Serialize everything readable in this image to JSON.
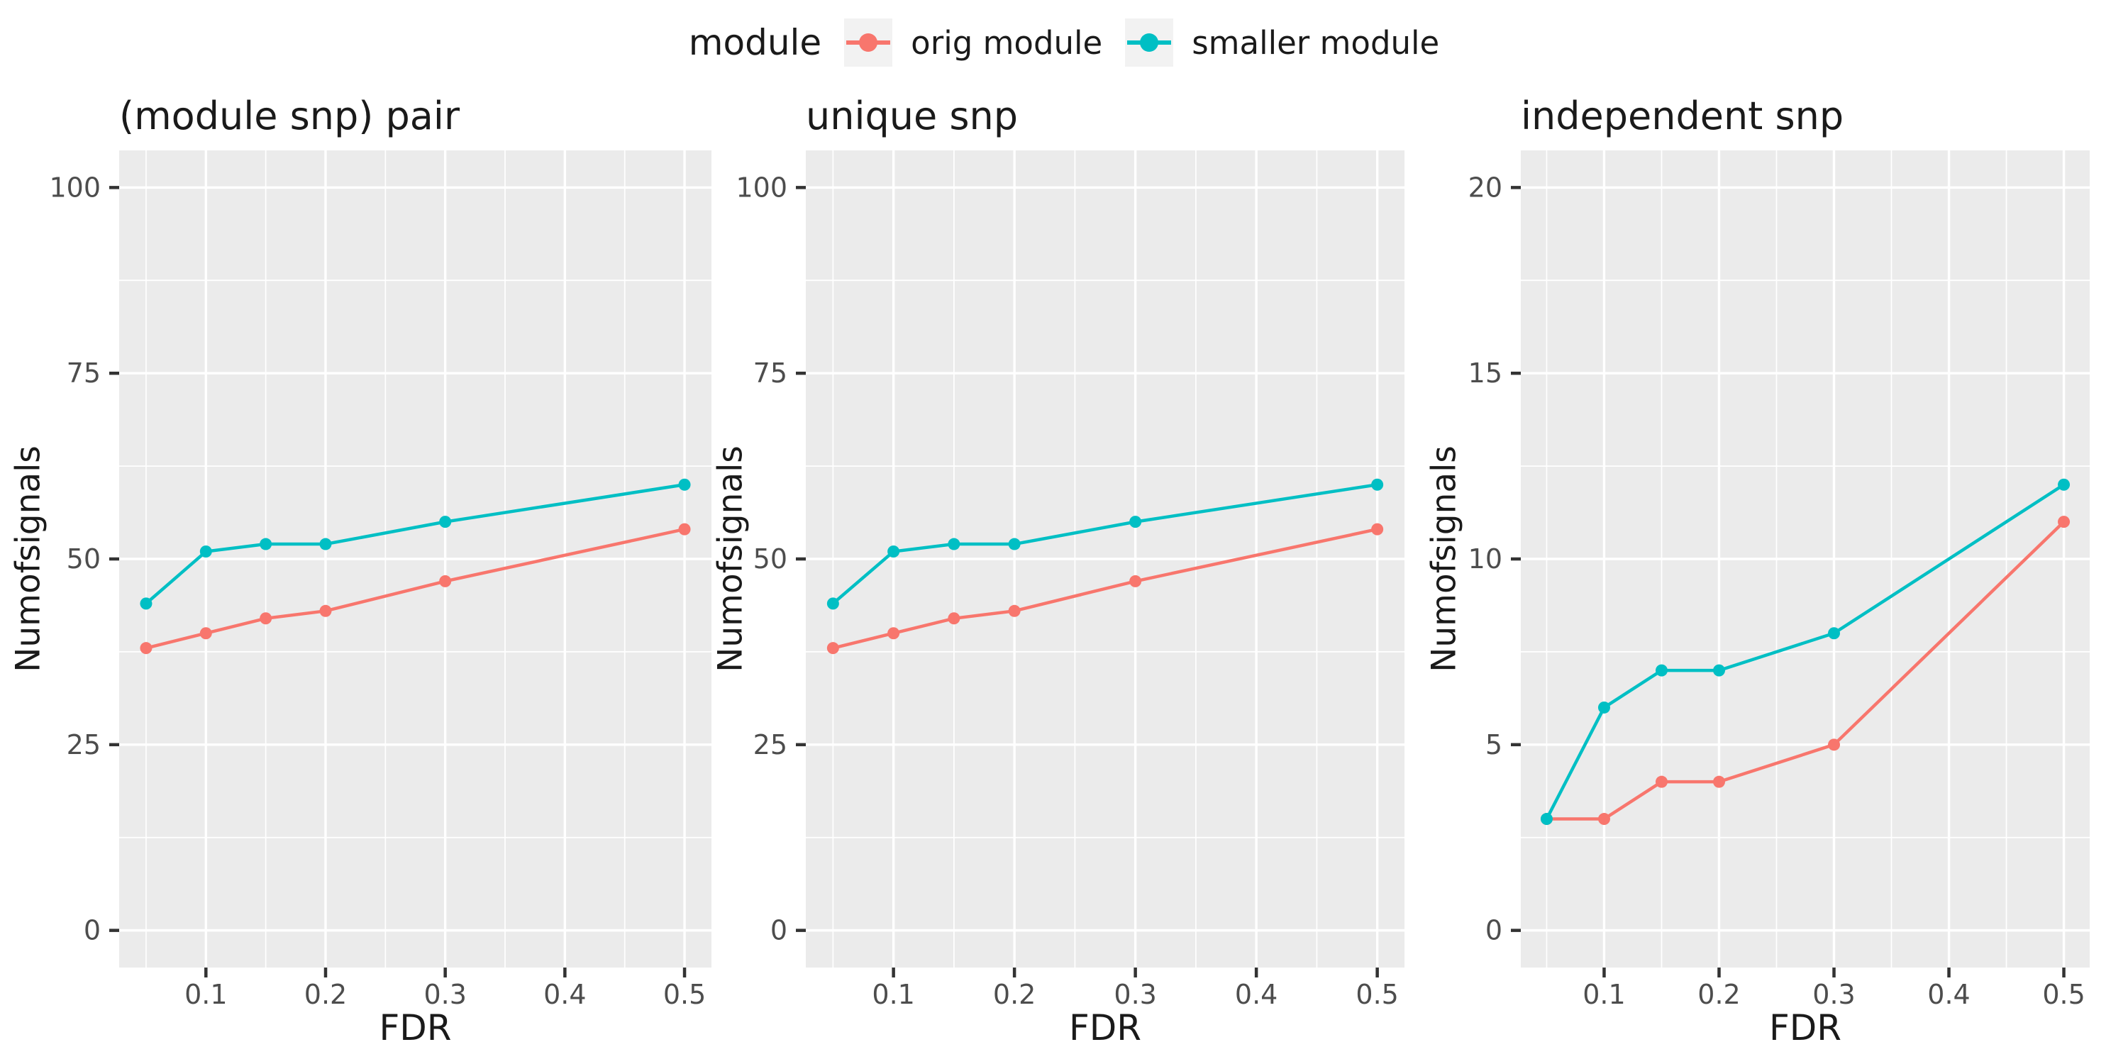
{
  "legend": {
    "title": "module",
    "items": [
      {
        "id": "orig-module",
        "label": "orig module",
        "color": "#F8766D"
      },
      {
        "id": "smaller-module",
        "label": "smaller module",
        "color": "#00BFC4"
      }
    ],
    "position": "top-center",
    "key_background": "#F2F2F2"
  },
  "colors": {
    "panel_bg": "#EBEBEB",
    "grid": "#FFFFFF",
    "tick_mark": "#333333",
    "tick_text": "#4D4D4D",
    "text": "#1A1A1A",
    "background": "#FFFFFF"
  },
  "chart_data": [
    {
      "type": "line",
      "id": "module-snp-pair",
      "title": "(module snp) pair",
      "xlabel": "FDR",
      "ylabel": "Numofsignals",
      "x": [
        0.05,
        0.1,
        0.15,
        0.2,
        0.3,
        0.5
      ],
      "series": [
        {
          "id": "orig-module",
          "name": "orig module",
          "color": "#F8766D",
          "values": [
            38,
            40,
            42,
            43,
            47,
            54
          ]
        },
        {
          "id": "smaller-module",
          "name": "smaller module",
          "color": "#00BFC4",
          "values": [
            44,
            51,
            52,
            52,
            55,
            60
          ]
        }
      ],
      "xlim": [
        0.0275,
        0.5225
      ],
      "ylim": [
        -5,
        105
      ],
      "x_ticks": [
        0.1,
        0.2,
        0.3,
        0.4,
        0.5
      ],
      "x_tick_labels": [
        "0.1",
        "0.2",
        "0.3",
        "0.4",
        "0.5"
      ],
      "x_minor_ticks": [
        0.05,
        0.15,
        0.25,
        0.35,
        0.45
      ],
      "y_ticks": [
        0,
        25,
        50,
        75,
        100
      ],
      "y_tick_labels": [
        "0",
        "25",
        "50",
        "75",
        "100"
      ],
      "y_minor_ticks": [
        12.5,
        37.5,
        62.5,
        87.5
      ],
      "grid": true
    },
    {
      "type": "line",
      "id": "unique-snp",
      "title": "unique snp",
      "xlabel": "FDR",
      "ylabel": "Numofsignals",
      "x": [
        0.05,
        0.1,
        0.15,
        0.2,
        0.3,
        0.5
      ],
      "series": [
        {
          "id": "orig-module",
          "name": "orig module",
          "color": "#F8766D",
          "values": [
            38,
            40,
            42,
            43,
            47,
            54
          ]
        },
        {
          "id": "smaller-module",
          "name": "smaller module",
          "color": "#00BFC4",
          "values": [
            44,
            51,
            52,
            52,
            55,
            60
          ]
        }
      ],
      "xlim": [
        0.0275,
        0.5225
      ],
      "ylim": [
        -5,
        105
      ],
      "x_ticks": [
        0.1,
        0.2,
        0.3,
        0.4,
        0.5
      ],
      "x_tick_labels": [
        "0.1",
        "0.2",
        "0.3",
        "0.4",
        "0.5"
      ],
      "x_minor_ticks": [
        0.05,
        0.15,
        0.25,
        0.35,
        0.45
      ],
      "y_ticks": [
        0,
        25,
        50,
        75,
        100
      ],
      "y_tick_labels": [
        "0",
        "25",
        "50",
        "75",
        "100"
      ],
      "y_minor_ticks": [
        12.5,
        37.5,
        62.5,
        87.5
      ],
      "grid": true
    },
    {
      "type": "line",
      "id": "independent-snp",
      "title": "independent snp",
      "xlabel": "FDR",
      "ylabel": "Numofsignals",
      "x": [
        0.05,
        0.1,
        0.15,
        0.2,
        0.3,
        0.5
      ],
      "series": [
        {
          "id": "orig-module",
          "name": "orig module",
          "color": "#F8766D",
          "values": [
            3,
            3,
            4,
            4,
            5,
            11
          ]
        },
        {
          "id": "smaller-module",
          "name": "smaller module",
          "color": "#00BFC4",
          "values": [
            3,
            6,
            7,
            7,
            8,
            12
          ]
        }
      ],
      "xlim": [
        0.0275,
        0.5225
      ],
      "ylim": [
        -1,
        21
      ],
      "x_ticks": [
        0.1,
        0.2,
        0.3,
        0.4,
        0.5
      ],
      "x_tick_labels": [
        "0.1",
        "0.2",
        "0.3",
        "0.4",
        "0.5"
      ],
      "x_minor_ticks": [
        0.05,
        0.15,
        0.25,
        0.35,
        0.45
      ],
      "y_ticks": [
        0,
        5,
        10,
        15,
        20
      ],
      "y_tick_labels": [
        "0",
        "5",
        "10",
        "15",
        "20"
      ],
      "y_minor_ticks": [
        2.5,
        7.5,
        12.5,
        17.5
      ],
      "grid": true
    }
  ]
}
